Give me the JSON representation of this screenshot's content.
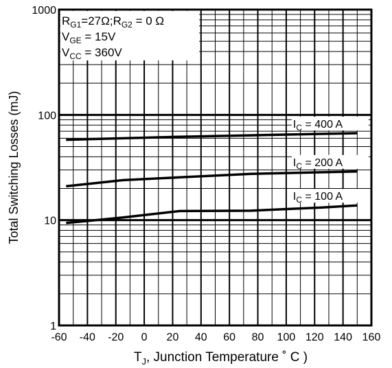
{
  "chart_data": {
    "type": "line",
    "xlabel": "T",
    "xlabel_sub": "J",
    "xlabel_rest": ", Junction Temperature ˚ C )",
    "ylabel": "Total Switching Losses (mJ)",
    "x_range": [
      -60,
      160
    ],
    "y_range": [
      1,
      1000
    ],
    "y_scale": "log",
    "x_ticks": [
      "-60",
      "-40",
      "-20",
      "0",
      "20",
      "40",
      "60",
      "80",
      "100",
      "120",
      "140",
      "160"
    ],
    "y_ticks": [
      "1",
      "10",
      "100",
      "1000"
    ],
    "grid": true,
    "conditions": [
      {
        "parts": [
          [
            "R",
            "normal"
          ],
          [
            "G1",
            "sub"
          ],
          [
            "=27Ω;R",
            "normal"
          ],
          [
            "G2",
            "sub"
          ],
          [
            " = 0 Ω",
            "normal"
          ]
        ]
      },
      {
        "parts": [
          [
            "V",
            "normal"
          ],
          [
            "GE",
            "sub"
          ],
          [
            "  = 15V",
            "normal"
          ]
        ]
      },
      {
        "parts": [
          [
            "V",
            "normal"
          ],
          [
            "CC",
            "sub"
          ],
          [
            "  = 360V",
            "normal"
          ]
        ]
      }
    ],
    "series": [
      {
        "name": "IC = 400 A",
        "label_main": "I",
        "label_sub": "C",
        "label_rest": " = 400 A",
        "x": [
          -55,
          25,
          75,
          125,
          150
        ],
        "y": [
          58,
          62,
          64,
          66,
          67
        ]
      },
      {
        "name": "IC = 200 A",
        "label_main": "I",
        "label_sub": "C",
        "label_rest": " = 200 A",
        "x": [
          -55,
          -15,
          25,
          75,
          125,
          150
        ],
        "y": [
          21,
          24,
          25.5,
          27.5,
          28.5,
          29
        ]
      },
      {
        "name": "IC = 100 A",
        "label_main": "I",
        "label_sub": "C",
        "label_rest": " = 100 A",
        "x": [
          -55,
          -15,
          25,
          75,
          125,
          150
        ],
        "y": [
          9.4,
          10.6,
          12.2,
          12.3,
          13.2,
          13.8
        ]
      }
    ]
  }
}
